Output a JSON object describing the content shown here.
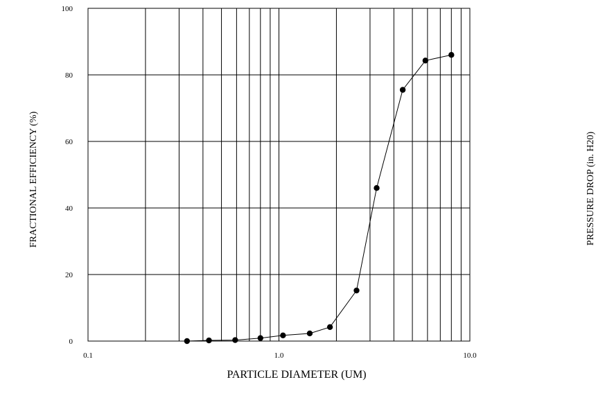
{
  "chart_data": {
    "type": "line",
    "xlabel": "PARTICLE DIAMETER (UM)",
    "ylabel": "FRACTIONAL EFFICIENCY (%)",
    "y2label": "PRESSURE DROP (in. H20)",
    "x_scale": "log",
    "xlim": [
      0.1,
      10.0
    ],
    "ylim": [
      0,
      100
    ],
    "x_ticks": [
      0.1,
      1.0,
      10.0
    ],
    "x_tick_labels": [
      "0.1",
      "1.0",
      "10.0"
    ],
    "y_ticks": [
      0,
      20,
      40,
      60,
      80,
      100
    ],
    "y_tick_labels": [
      "0",
      "20",
      "40",
      "60",
      "80",
      "100"
    ],
    "grid": true,
    "series": [
      {
        "x": [
          0.33,
          0.43,
          0.59,
          0.8,
          1.05,
          1.45,
          1.85,
          2.55,
          3.25,
          4.45,
          5.85,
          8.0
        ],
        "y": [
          0,
          0.2,
          0.3,
          0.9,
          1.7,
          2.3,
          4.2,
          15.2,
          46.0,
          75.5,
          84.3,
          86.0
        ]
      }
    ]
  }
}
